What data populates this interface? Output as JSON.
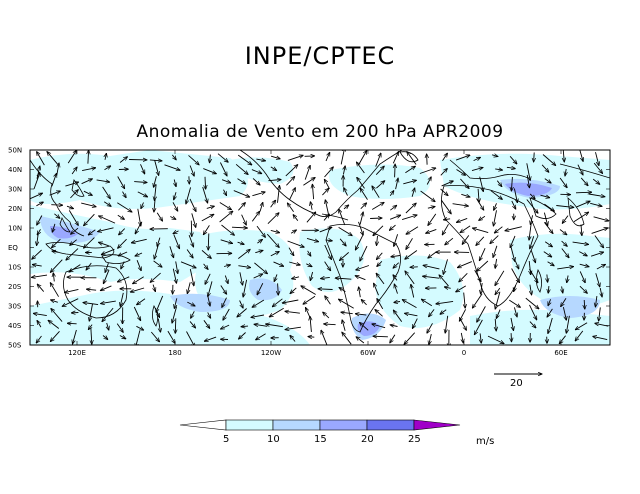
{
  "header": {
    "institution": "INPE/CPTEC"
  },
  "map": {
    "title": "Anomalia de Vento em 200 hPa APR2009",
    "variable": "Wind anomaly vectors at 200 hPa",
    "lat_labels": [
      "50N",
      "40N",
      "30N",
      "20N",
      "10N",
      "EQ",
      "10S",
      "20S",
      "30S",
      "40S",
      "50S"
    ],
    "lon_labels": [
      "120E",
      "180",
      "120W",
      "60W",
      "0",
      "60E"
    ],
    "lat_range": [
      -50,
      50
    ],
    "lon_range": [
      80,
      100
    ],
    "reference_vector": {
      "value": "20"
    },
    "shading_colors": {
      "c1": "#d4fbff",
      "c2": "#b6d8ff",
      "c3": "#9aa8ff",
      "c4": "#6a74f0",
      "c5": "#a000c8"
    }
  },
  "legend": {
    "ticks": [
      "5",
      "10",
      "15",
      "20",
      "25"
    ],
    "unit": "m/s",
    "colors": [
      "#ffffff",
      "#d4fbff",
      "#b6d8ff",
      "#9aa8ff",
      "#6a74f0",
      "#a000c8"
    ]
  }
}
